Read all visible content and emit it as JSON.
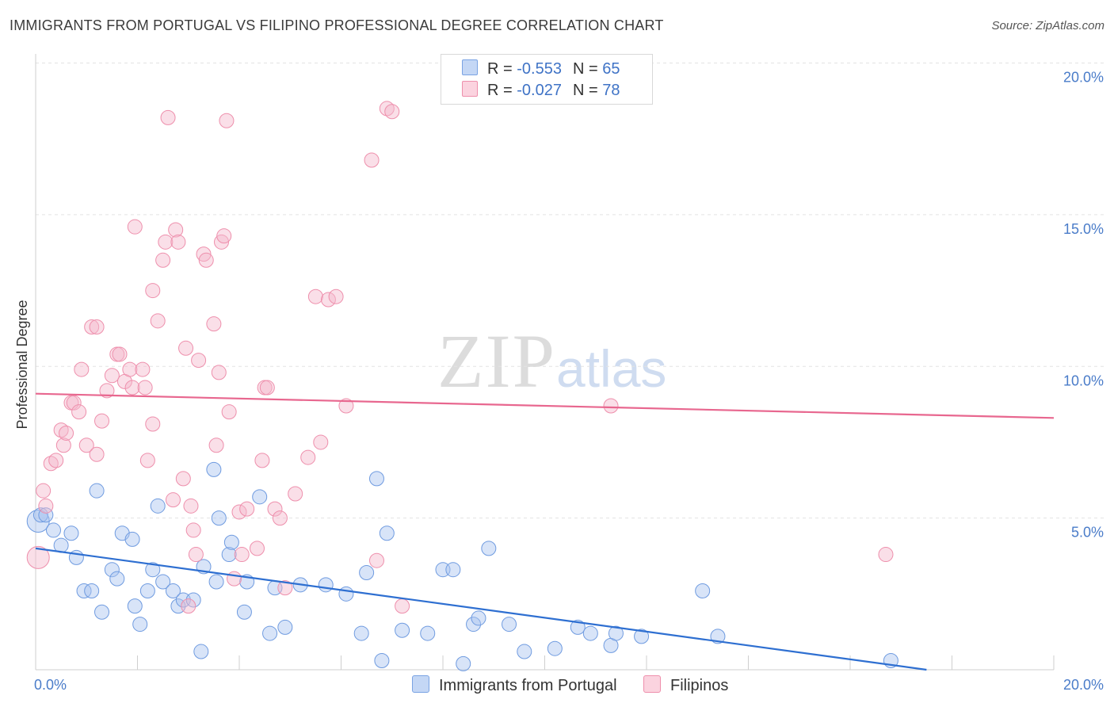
{
  "header": {
    "title": "IMMIGRANTS FROM PORTUGAL VS FILIPINO PROFESSIONAL DEGREE CORRELATION CHART",
    "source": "Source: ZipAtlas.com"
  },
  "watermark": {
    "zip": "ZIP",
    "atlas": "atlas"
  },
  "legend": {
    "rows": [
      {
        "r_label": "R = ",
        "r_value": "-0.553",
        "n_label": "N = ",
        "n_value": "65",
        "color": "#a9c4ef"
      },
      {
        "r_label": "R = ",
        "r_value": "-0.027",
        "n_label": "N = ",
        "n_value": "78",
        "color": "#f5b8cb"
      }
    ]
  },
  "bottom_legend": {
    "items": [
      {
        "label": "Immigrants from Portugal",
        "color": "#a9c4ef"
      },
      {
        "label": "Filipinos",
        "color": "#f5b8cb"
      }
    ]
  },
  "chart_data": {
    "type": "scatter",
    "ylabel": "Professional Degree",
    "xlim": [
      0,
      20
    ],
    "ylim": [
      0,
      20
    ],
    "x_tick_labels": [
      "0.0%",
      "20.0%"
    ],
    "y_ticks": [
      {
        "value": 5,
        "label": "5.0%"
      },
      {
        "value": 10,
        "label": "10.0%"
      },
      {
        "value": 15,
        "label": "15.0%"
      },
      {
        "value": 20,
        "label": "20.0%"
      }
    ],
    "grid": true,
    "series": [
      {
        "name": "Immigrants from Portugal",
        "color": "#a9c4ef",
        "stroke": "#6f9be0",
        "trend": {
          "color": "#2e6fd1",
          "x": [
            0,
            17.5
          ],
          "y": [
            4.0,
            0.0
          ]
        },
        "points": [
          [
            0.05,
            4.9
          ],
          [
            0.1,
            5.1
          ],
          [
            0.2,
            5.1
          ],
          [
            0.35,
            4.6
          ],
          [
            0.5,
            4.1
          ],
          [
            0.7,
            4.5
          ],
          [
            0.8,
            3.7
          ],
          [
            0.95,
            2.6
          ],
          [
            1.1,
            2.6
          ],
          [
            1.2,
            5.9
          ],
          [
            1.3,
            1.9
          ],
          [
            1.5,
            3.3
          ],
          [
            1.6,
            3.0
          ],
          [
            1.7,
            4.5
          ],
          [
            1.9,
            4.3
          ],
          [
            1.95,
            2.1
          ],
          [
            2.05,
            1.5
          ],
          [
            2.2,
            2.6
          ],
          [
            2.3,
            3.3
          ],
          [
            2.4,
            5.4
          ],
          [
            2.5,
            2.9
          ],
          [
            2.7,
            2.6
          ],
          [
            2.8,
            2.1
          ],
          [
            2.9,
            2.3
          ],
          [
            3.1,
            2.3
          ],
          [
            3.25,
            0.6
          ],
          [
            3.3,
            3.4
          ],
          [
            3.5,
            6.6
          ],
          [
            3.55,
            2.9
          ],
          [
            3.6,
            5.0
          ],
          [
            3.8,
            3.8
          ],
          [
            3.85,
            4.2
          ],
          [
            4.1,
            1.9
          ],
          [
            4.15,
            2.9
          ],
          [
            4.4,
            5.7
          ],
          [
            4.6,
            1.2
          ],
          [
            4.7,
            2.7
          ],
          [
            4.9,
            1.4
          ],
          [
            5.2,
            2.8
          ],
          [
            5.7,
            2.8
          ],
          [
            6.1,
            2.5
          ],
          [
            6.4,
            1.2
          ],
          [
            6.5,
            3.2
          ],
          [
            6.7,
            6.3
          ],
          [
            6.8,
            0.3
          ],
          [
            6.9,
            4.5
          ],
          [
            7.2,
            1.3
          ],
          [
            7.7,
            1.2
          ],
          [
            8.0,
            3.3
          ],
          [
            8.2,
            3.3
          ],
          [
            8.4,
            0.2
          ],
          [
            8.6,
            1.5
          ],
          [
            8.7,
            1.7
          ],
          [
            8.9,
            4.0
          ],
          [
            9.3,
            1.5
          ],
          [
            9.6,
            0.6
          ],
          [
            10.2,
            0.7
          ],
          [
            10.65,
            1.4
          ],
          [
            10.9,
            1.2
          ],
          [
            11.3,
            0.8
          ],
          [
            11.4,
            1.2
          ],
          [
            11.9,
            1.1
          ],
          [
            13.1,
            2.6
          ],
          [
            13.4,
            1.1
          ],
          [
            16.8,
            0.3
          ]
        ]
      },
      {
        "name": "Filipinos",
        "color": "#f5b8cb",
        "stroke": "#ee8fac",
        "trend": {
          "color": "#e8678f",
          "x": [
            0,
            20
          ],
          "y": [
            9.1,
            8.3
          ]
        },
        "points": [
          [
            0.05,
            3.7
          ],
          [
            0.15,
            5.9
          ],
          [
            0.2,
            5.4
          ],
          [
            0.3,
            6.8
          ],
          [
            0.4,
            6.9
          ],
          [
            0.5,
            7.9
          ],
          [
            0.55,
            7.4
          ],
          [
            0.6,
            7.8
          ],
          [
            0.7,
            8.8
          ],
          [
            0.75,
            8.8
          ],
          [
            0.85,
            8.5
          ],
          [
            0.9,
            9.9
          ],
          [
            1.0,
            7.4
          ],
          [
            1.1,
            11.3
          ],
          [
            1.2,
            11.3
          ],
          [
            1.2,
            7.1
          ],
          [
            1.3,
            8.2
          ],
          [
            1.4,
            9.2
          ],
          [
            1.5,
            9.7
          ],
          [
            1.6,
            10.4
          ],
          [
            1.65,
            10.4
          ],
          [
            1.75,
            9.5
          ],
          [
            1.85,
            9.9
          ],
          [
            1.9,
            9.3
          ],
          [
            1.95,
            14.6
          ],
          [
            2.1,
            9.9
          ],
          [
            2.15,
            9.3
          ],
          [
            2.2,
            6.9
          ],
          [
            2.3,
            8.1
          ],
          [
            2.3,
            12.5
          ],
          [
            2.4,
            11.5
          ],
          [
            2.5,
            13.5
          ],
          [
            2.55,
            14.1
          ],
          [
            2.6,
            18.2
          ],
          [
            2.7,
            5.6
          ],
          [
            2.75,
            14.5
          ],
          [
            2.8,
            14.1
          ],
          [
            2.9,
            6.3
          ],
          [
            2.95,
            10.6
          ],
          [
            3.0,
            2.1
          ],
          [
            3.05,
            5.4
          ],
          [
            3.1,
            4.6
          ],
          [
            3.15,
            3.8
          ],
          [
            3.2,
            10.2
          ],
          [
            3.3,
            13.7
          ],
          [
            3.35,
            13.5
          ],
          [
            3.5,
            11.4
          ],
          [
            3.55,
            7.4
          ],
          [
            3.6,
            9.8
          ],
          [
            3.65,
            14.1
          ],
          [
            3.7,
            14.3
          ],
          [
            3.75,
            18.1
          ],
          [
            3.8,
            8.5
          ],
          [
            3.9,
            3.0
          ],
          [
            4.0,
            5.2
          ],
          [
            4.05,
            3.8
          ],
          [
            4.15,
            5.3
          ],
          [
            4.35,
            4.0
          ],
          [
            4.45,
            6.9
          ],
          [
            4.5,
            9.3
          ],
          [
            4.55,
            9.3
          ],
          [
            4.7,
            5.3
          ],
          [
            4.8,
            5.0
          ],
          [
            4.9,
            2.7
          ],
          [
            5.1,
            5.8
          ],
          [
            5.35,
            7.0
          ],
          [
            5.5,
            12.3
          ],
          [
            5.6,
            7.5
          ],
          [
            5.75,
            12.2
          ],
          [
            5.9,
            12.3
          ],
          [
            6.1,
            8.7
          ],
          [
            6.6,
            16.8
          ],
          [
            6.7,
            3.6
          ],
          [
            6.9,
            18.5
          ],
          [
            7.0,
            18.4
          ],
          [
            7.2,
            2.1
          ],
          [
            11.3,
            8.7
          ],
          [
            16.7,
            3.8
          ]
        ]
      }
    ]
  }
}
